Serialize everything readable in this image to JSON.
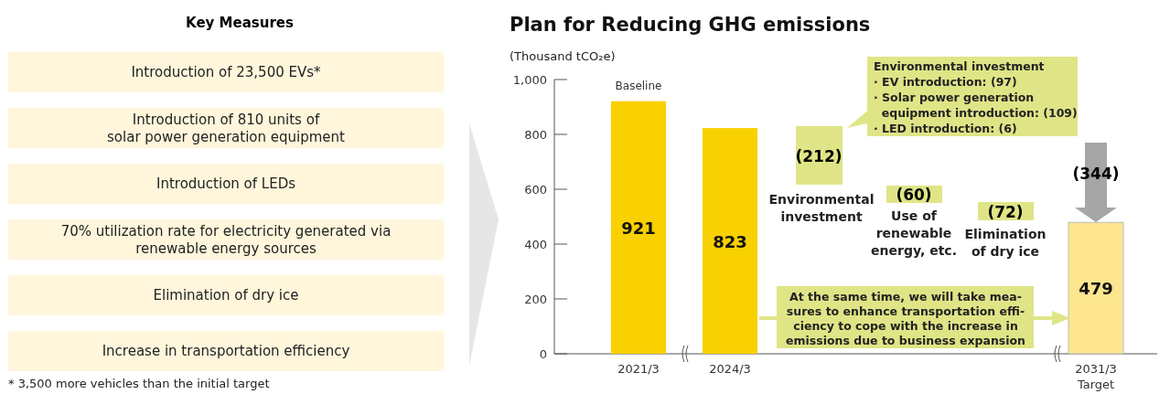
{
  "chart_data": {
    "type": "bar",
    "title": "Plan for Reducing GHG emissions",
    "ylabel": "(Thousand tCO₂e)",
    "categories": [
      "2021/3",
      "2024/3",
      null,
      null,
      null,
      "2031/3\nTarget"
    ],
    "values": [
      921,
      823,
      null,
      null,
      null,
      479
    ],
    "colors": [
      "#f9d000",
      "#f9d000",
      null,
      null,
      null,
      "#fde68f"
    ],
    "data_labels": true,
    "ylim": [
      0,
      1000
    ],
    "yticks": [
      0,
      200,
      400,
      600,
      800,
      {
        "value": 1000,
        "label": "1,000"
      }
    ],
    "annotations": [
      {
        "text": "Baseline",
        "x": "2021/3",
        "y": 921
      },
      "Environmental investment\n· EV introduction: (97)\n· Solar power generation\n  equipment introduction: (109)\n· LED introduction: (6)",
      "(212)",
      "Environmental\ninvestment",
      "(60)",
      "Use of\nrenewable\nenergy, etc.",
      "(72)",
      "Elimination\nof dry ice",
      "(344)",
      "At the same time, we will take mea-\nsures to enhance transportation effi-\nciency to cope with the increase in\nemissions due to business expansion",
      "Key Measures",
      "Introduction of 23,500 EVs*",
      "Introduction of 810 units of\nsolar power generation equipment",
      "Introduction of LEDs",
      "70% utilization rate for electricity generated via\nrenewable energy sources",
      "Elimination of dry ice",
      "Increase in transportation efficiency",
      "* 3,500 more vehicles than the initial target"
    ]
  }
}
